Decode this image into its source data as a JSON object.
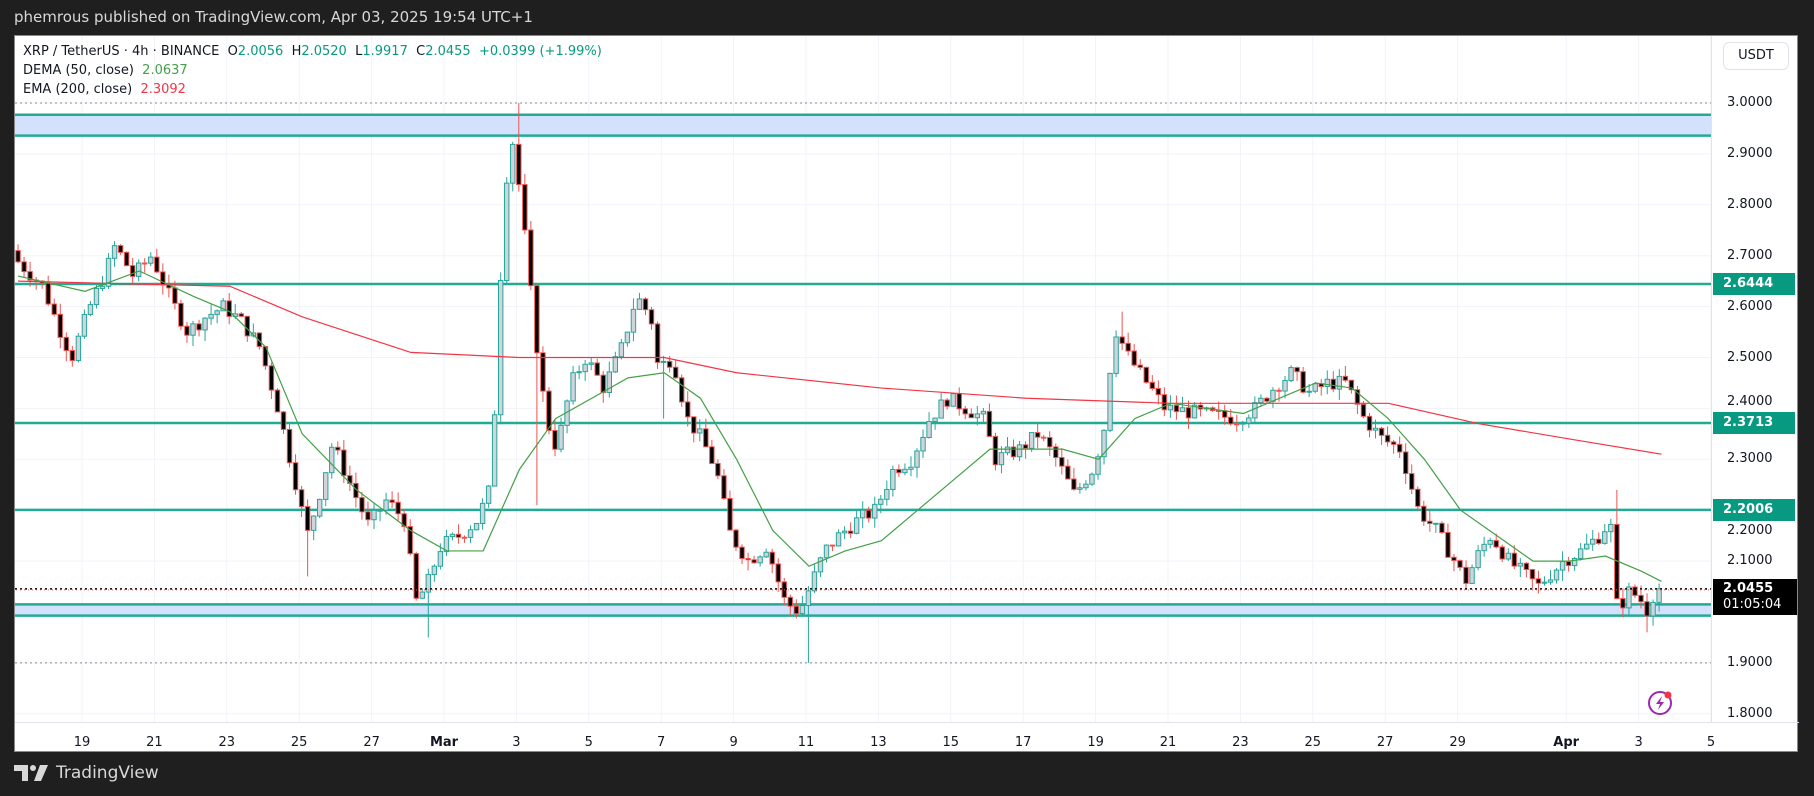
{
  "header": {
    "published": "phemrous published on TradingView.com, Apr 03, 2025 19:54 UTC+1"
  },
  "legend": {
    "symbol": "XRP / TetherUS · 4h · BINANCE",
    "o_label": "O",
    "o": "2.0056",
    "h_label": "H",
    "h": "2.0520",
    "l_label": "L",
    "l": "1.9917",
    "c_label": "C",
    "c": "2.0455",
    "change": "+0.0399 (+1.99%)",
    "dema_label": "DEMA (50, close)",
    "dema": "2.0637",
    "ema_label": "EMA (200, close)",
    "ema": "2.3092"
  },
  "axis": {
    "currency": "USDT",
    "current_price": "2.0455",
    "countdown": "01:05:04"
  },
  "footer": {
    "brand": "TradingView"
  },
  "colors": {
    "up": "#26a69a",
    "up_fill": "#d1d4dc",
    "down": "#ef5350",
    "down_fill": "#000000",
    "dema": "#43a047",
    "ema": "#f23645",
    "level": "#089981",
    "zone": "#d4e1fd"
  },
  "chart_data": {
    "type": "candlestick",
    "x_unit": "days since Mar 1 2025",
    "interval": "4h",
    "ylim": [
      1.78,
      3.06
    ],
    "yticks": [
      "3.0000",
      "2.9000",
      "2.8000",
      "2.7000",
      "2.6000",
      "2.5000",
      "2.4000",
      "2.3000",
      "2.2000",
      "2.1000",
      "1.9000",
      "1.8000"
    ],
    "xticks": [
      {
        "label": "19",
        "x": -10
      },
      {
        "label": "21",
        "x": -8
      },
      {
        "label": "23",
        "x": -6
      },
      {
        "label": "25",
        "x": -4
      },
      {
        "label": "27",
        "x": -2
      },
      {
        "label": "Mar",
        "x": 0,
        "bold": true
      },
      {
        "label": "3",
        "x": 2
      },
      {
        "label": "5",
        "x": 4
      },
      {
        "label": "7",
        "x": 6
      },
      {
        "label": "9",
        "x": 8
      },
      {
        "label": "11",
        "x": 10
      },
      {
        "label": "13",
        "x": 12
      },
      {
        "label": "15",
        "x": 14
      },
      {
        "label": "17",
        "x": 16
      },
      {
        "label": "19",
        "x": 18
      },
      {
        "label": "21",
        "x": 20
      },
      {
        "label": "23",
        "x": 22
      },
      {
        "label": "25",
        "x": 24
      },
      {
        "label": "27",
        "x": 26
      },
      {
        "label": "29",
        "x": 28
      },
      {
        "label": "Apr",
        "x": 31,
        "bold": true
      },
      {
        "label": "3",
        "x": 33
      },
      {
        "label": "5",
        "x": 35
      }
    ],
    "levels": [
      {
        "price": 2.6444,
        "label": "2.6444"
      },
      {
        "price": 2.3713,
        "label": "2.3713"
      },
      {
        "price": 2.2006,
        "label": "2.2006"
      }
    ],
    "zones": [
      [
        2.936,
        2.977
      ],
      [
        1.993,
        2.015
      ]
    ],
    "dotted_levels": [
      3.0,
      1.9
    ],
    "close_path": [
      [
        -11.85,
        2.7
      ],
      [
        -11,
        2.64
      ],
      [
        -10.5,
        2.55
      ],
      [
        -10.2,
        2.5
      ],
      [
        -9.7,
        2.6
      ],
      [
        -9.3,
        2.66
      ],
      [
        -9,
        2.72
      ],
      [
        -8.5,
        2.66
      ],
      [
        -8,
        2.7
      ],
      [
        -7.5,
        2.62
      ],
      [
        -7,
        2.55
      ],
      [
        -6.5,
        2.58
      ],
      [
        -6,
        2.6
      ],
      [
        -5.5,
        2.57
      ],
      [
        -5,
        2.52
      ],
      [
        -4.5,
        2.4
      ],
      [
        -4,
        2.25
      ],
      [
        -3.7,
        2.15
      ],
      [
        -3.4,
        2.22
      ],
      [
        -3,
        2.33
      ],
      [
        -2.5,
        2.25
      ],
      [
        -2,
        2.17
      ],
      [
        -1.5,
        2.22
      ],
      [
        -1,
        2.18
      ],
      [
        -0.7,
        2.02
      ],
      [
        -0.4,
        2.05
      ],
      [
        0,
        2.13
      ],
      [
        0.5,
        2.15
      ],
      [
        1,
        2.18
      ],
      [
        1.4,
        2.25
      ],
      [
        1.6,
        2.6
      ],
      [
        1.8,
        2.85
      ],
      [
        2.0,
        2.93
      ],
      [
        2.3,
        2.75
      ],
      [
        2.6,
        2.55
      ],
      [
        2.9,
        2.38
      ],
      [
        3.2,
        2.32
      ],
      [
        3.6,
        2.45
      ],
      [
        4,
        2.5
      ],
      [
        4.5,
        2.44
      ],
      [
        5,
        2.52
      ],
      [
        5.4,
        2.62
      ],
      [
        5.8,
        2.58
      ],
      [
        6,
        2.48
      ],
      [
        6.4,
        2.5
      ],
      [
        6.8,
        2.38
      ],
      [
        7.2,
        2.34
      ],
      [
        7.6,
        2.28
      ],
      [
        8,
        2.15
      ],
      [
        8.5,
        2.1
      ],
      [
        9,
        2.13
      ],
      [
        9.5,
        2.02
      ],
      [
        9.9,
        2.0
      ],
      [
        10.2,
        2.05
      ],
      [
        10.6,
        2.12
      ],
      [
        11,
        2.15
      ],
      [
        11.5,
        2.18
      ],
      [
        12,
        2.2
      ],
      [
        12.5,
        2.28
      ],
      [
        13,
        2.3
      ],
      [
        13.5,
        2.38
      ],
      [
        14,
        2.42
      ],
      [
        14.5,
        2.4
      ],
      [
        15,
        2.38
      ],
      [
        15.3,
        2.3
      ],
      [
        16,
        2.32
      ],
      [
        16.5,
        2.35
      ],
      [
        17,
        2.3
      ],
      [
        17.5,
        2.23
      ],
      [
        18,
        2.28
      ],
      [
        18.3,
        2.35
      ],
      [
        18.6,
        2.56
      ],
      [
        19,
        2.5
      ],
      [
        19.5,
        2.45
      ],
      [
        20,
        2.4
      ],
      [
        21,
        2.39
      ],
      [
        22,
        2.38
      ],
      [
        22.5,
        2.4
      ],
      [
        23,
        2.44
      ],
      [
        23.5,
        2.47
      ],
      [
        24,
        2.43
      ],
      [
        24.5,
        2.45
      ],
      [
        25,
        2.45
      ],
      [
        25.5,
        2.38
      ],
      [
        26,
        2.34
      ],
      [
        26.5,
        2.32
      ],
      [
        27,
        2.2
      ],
      [
        27.5,
        2.16
      ],
      [
        28,
        2.1
      ],
      [
        28.3,
        2.06
      ],
      [
        28.7,
        2.12
      ],
      [
        29,
        2.15
      ],
      [
        29.5,
        2.1
      ],
      [
        30,
        2.07
      ],
      [
        30.3,
        2.05
      ],
      [
        31,
        2.1
      ],
      [
        31.5,
        2.12
      ],
      [
        32,
        2.15
      ],
      [
        32.3,
        2.18
      ],
      [
        32.5,
        2.0
      ],
      [
        32.8,
        2.04
      ],
      [
        33.1,
        2.03
      ],
      [
        33.3,
        2.0
      ],
      [
        33.55,
        2.0455
      ]
    ],
    "extremes": [
      [
        1.9,
        3.0
      ],
      [
        10.0,
        1.9
      ],
      [
        -0.6,
        1.95
      ],
      [
        5.9,
        2.38
      ],
      [
        18.6,
        2.59
      ],
      [
        32.4,
        2.24
      ],
      [
        33.2,
        1.96
      ],
      [
        -3.8,
        2.07
      ],
      [
        2.5,
        2.21
      ]
    ],
    "series": [
      {
        "name": "EMA (200, close)",
        "points": [
          [
            -11.85,
            2.65
          ],
          [
            -6,
            2.64
          ],
          [
            -4,
            2.58
          ],
          [
            -1,
            2.51
          ],
          [
            2,
            2.5
          ],
          [
            6,
            2.5
          ],
          [
            8,
            2.47
          ],
          [
            12,
            2.44
          ],
          [
            16,
            2.42
          ],
          [
            20,
            2.41
          ],
          [
            26,
            2.41
          ],
          [
            28.5,
            2.37
          ],
          [
            31,
            2.34
          ],
          [
            33.55,
            2.31
          ]
        ]
      },
      {
        "name": "DEMA (50, close)",
        "points": [
          [
            -11.85,
            2.66
          ],
          [
            -10,
            2.63
          ],
          [
            -8.5,
            2.67
          ],
          [
            -7,
            2.62
          ],
          [
            -6,
            2.59
          ],
          [
            -5,
            2.52
          ],
          [
            -4,
            2.35
          ],
          [
            -2.5,
            2.24
          ],
          [
            -1,
            2.16
          ],
          [
            0,
            2.12
          ],
          [
            1,
            2.12
          ],
          [
            2,
            2.28
          ],
          [
            3,
            2.38
          ],
          [
            4,
            2.42
          ],
          [
            5,
            2.46
          ],
          [
            6,
            2.47
          ],
          [
            7,
            2.42
          ],
          [
            8,
            2.3
          ],
          [
            9,
            2.16
          ],
          [
            10,
            2.09
          ],
          [
            11,
            2.12
          ],
          [
            12,
            2.14
          ],
          [
            13,
            2.2
          ],
          [
            14,
            2.26
          ],
          [
            15,
            2.32
          ],
          [
            16,
            2.32
          ],
          [
            17,
            2.32
          ],
          [
            18,
            2.3
          ],
          [
            19,
            2.38
          ],
          [
            20,
            2.41
          ],
          [
            22,
            2.39
          ],
          [
            23,
            2.42
          ],
          [
            24,
            2.45
          ],
          [
            25,
            2.44
          ],
          [
            26,
            2.38
          ],
          [
            27,
            2.3
          ],
          [
            28,
            2.2
          ],
          [
            29,
            2.15
          ],
          [
            30,
            2.1
          ],
          [
            31,
            2.1
          ],
          [
            32,
            2.11
          ],
          [
            33,
            2.08
          ],
          [
            33.55,
            2.06
          ]
        ]
      }
    ]
  }
}
